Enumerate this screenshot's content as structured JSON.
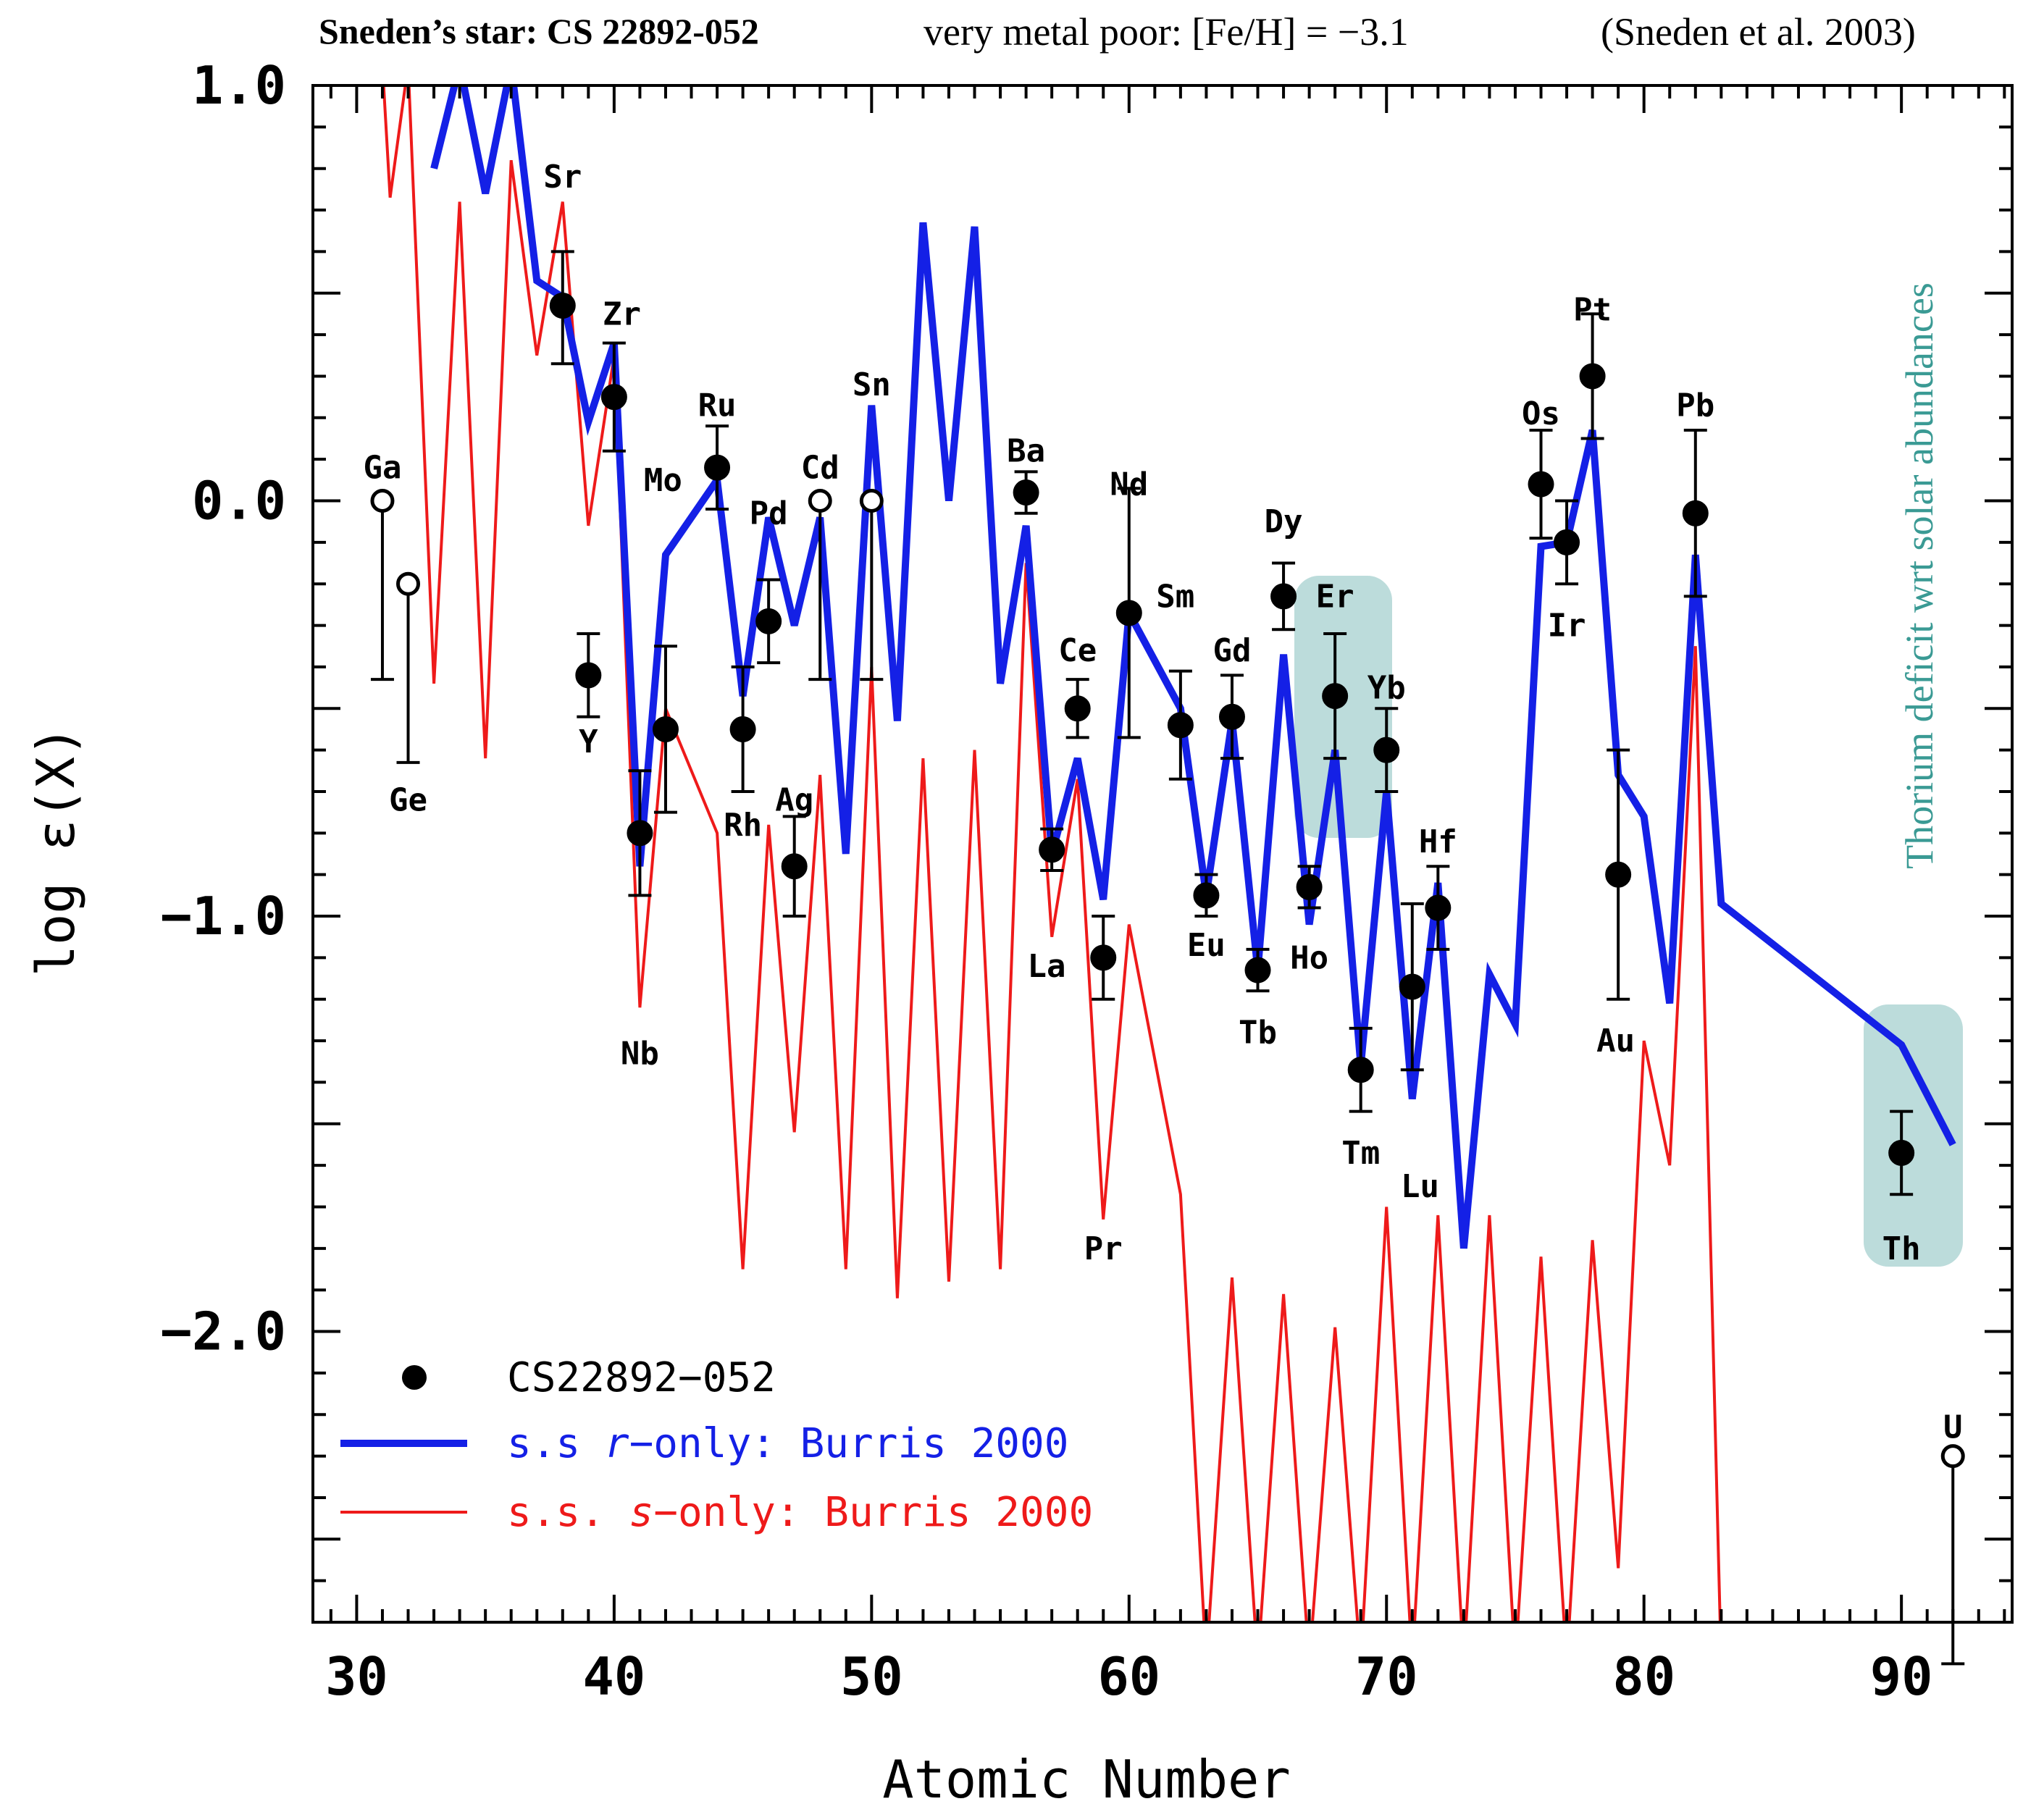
{
  "header": {
    "star": "Sneden’s star: CS 22892-052",
    "metal": "very metal poor: [Fe/H] = −3.1",
    "ref": "(Sneden et al. 2003)"
  },
  "annotation": "Thorium deficit wrt solar abundances",
  "colors": {
    "observed": "#000000",
    "r_only": "#1420e6",
    "s_only": "#ee1a1a",
    "highlight": "#bcdcdb",
    "annotation": "#3a9a94"
  },
  "chart_data": {
    "type": "line",
    "xlabel": "Atomic Number",
    "ylabel": "log ε(X)",
    "xlim": [
      28.3,
      94.3
    ],
    "ylim": [
      -2.7,
      1.0
    ],
    "x_ticks": [
      30,
      40,
      50,
      60,
      70,
      80,
      90
    ],
    "y_ticks": [
      {
        "value": 1.0,
        "label": "1.0"
      },
      {
        "value": 0.0,
        "label": "0.0"
      },
      {
        "value": -1.0,
        "label": "−1.0"
      },
      {
        "value": -2.0,
        "label": "−2.0"
      }
    ],
    "legend_position": "bottom-left",
    "legend": [
      {
        "key": "observed",
        "label": "CS22892−052"
      },
      {
        "key": "r_only",
        "prefix": "s.s ",
        "em": "r",
        "suffix": "−only: Burris 2000"
      },
      {
        "key": "s_only",
        "prefix": "s.s. ",
        "em": "s",
        "suffix": "−only: Burris 2000"
      }
    ],
    "series": [
      {
        "key": "r_only",
        "points": [
          [
            33,
            0.8
          ],
          [
            34,
            1.05
          ],
          [
            35,
            0.74
          ],
          [
            36,
            1.05
          ],
          [
            37,
            0.53
          ],
          [
            38,
            0.49
          ],
          [
            39,
            0.19
          ],
          [
            40,
            0.38
          ],
          [
            41,
            -0.88
          ],
          [
            42,
            -0.13
          ],
          [
            44,
            0.05
          ],
          [
            45,
            -0.47
          ],
          [
            46,
            -0.04
          ],
          [
            47,
            -0.3
          ],
          [
            48,
            -0.04
          ],
          [
            49,
            -0.85
          ],
          [
            50,
            0.23
          ],
          [
            51,
            -0.53
          ],
          [
            52,
            0.67
          ],
          [
            53,
            0.0
          ],
          [
            54,
            0.66
          ],
          [
            55,
            -0.44
          ],
          [
            56,
            -0.06
          ],
          [
            57,
            -0.85
          ],
          [
            58,
            -0.62
          ],
          [
            59,
            -0.96
          ],
          [
            60,
            -0.27
          ],
          [
            62,
            -0.5
          ],
          [
            63,
            -0.95
          ],
          [
            64,
            -0.53
          ],
          [
            65,
            -1.13
          ],
          [
            66,
            -0.37
          ],
          [
            67,
            -1.02
          ],
          [
            68,
            -0.6
          ],
          [
            69,
            -1.36
          ],
          [
            70,
            -0.7
          ],
          [
            71,
            -1.44
          ],
          [
            72,
            -0.92
          ],
          [
            73,
            -1.8
          ],
          [
            74,
            -1.14
          ],
          [
            75,
            -1.26
          ],
          [
            76,
            -0.11
          ],
          [
            77,
            -0.1
          ],
          [
            78,
            0.17
          ],
          [
            79,
            -0.66
          ],
          [
            80,
            -0.76
          ],
          [
            81,
            -1.21
          ],
          [
            82,
            -0.13
          ],
          [
            83,
            -0.97
          ],
          [
            90,
            -1.31
          ],
          [
            92,
            -1.55
          ]
        ]
      },
      {
        "key": "s_only",
        "points": [
          [
            31,
            1.05
          ],
          [
            31.3,
            0.73
          ],
          [
            32,
            1.05
          ],
          [
            33,
            -0.44
          ],
          [
            34,
            0.72
          ],
          [
            35,
            -0.62
          ],
          [
            36,
            0.82
          ],
          [
            37,
            0.35
          ],
          [
            38,
            0.72
          ],
          [
            39,
            -0.06
          ],
          [
            40,
            0.35
          ],
          [
            41,
            -1.22
          ],
          [
            42,
            -0.5
          ],
          [
            44,
            -0.8
          ],
          [
            45,
            -1.85
          ],
          [
            46,
            -0.78
          ],
          [
            47,
            -1.52
          ],
          [
            48,
            -0.66
          ],
          [
            49,
            -1.85
          ],
          [
            50,
            -0.4
          ],
          [
            51,
            -1.92
          ],
          [
            52,
            -0.62
          ],
          [
            53,
            -1.88
          ],
          [
            54,
            -0.6
          ],
          [
            55,
            -1.85
          ],
          [
            56,
            -0.15
          ],
          [
            57,
            -1.05
          ],
          [
            58,
            -0.67
          ],
          [
            59,
            -1.73
          ],
          [
            60,
            -1.02
          ],
          [
            62,
            -1.67
          ],
          [
            63,
            -2.8
          ],
          [
            64,
            -1.87
          ],
          [
            65,
            -2.8
          ],
          [
            66,
            -1.91
          ],
          [
            67,
            -2.8
          ],
          [
            68,
            -1.99
          ],
          [
            69,
            -2.8
          ],
          [
            70,
            -1.7
          ],
          [
            71,
            -2.8
          ],
          [
            72,
            -1.72
          ],
          [
            73,
            -2.8
          ],
          [
            74,
            -1.72
          ],
          [
            75,
            -2.8
          ],
          [
            76,
            -1.82
          ],
          [
            77,
            -2.8
          ],
          [
            78,
            -1.78
          ],
          [
            79,
            -2.57
          ],
          [
            80,
            -1.3
          ],
          [
            81,
            -1.6
          ],
          [
            82,
            -0.35
          ],
          [
            83,
            -2.8
          ]
        ]
      }
    ],
    "observed": [
      {
        "z": 31,
        "y": 0.0,
        "open": true,
        "lo": -0.43,
        "label": "Ga",
        "lx": 31,
        "ly": 0.08
      },
      {
        "z": 32,
        "y": -0.2,
        "open": true,
        "lo": -0.63,
        "label": "Ge",
        "lx": 32,
        "ly": -0.72
      },
      {
        "z": 38,
        "y": 0.47,
        "hi": 0.6,
        "lo": 0.33,
        "label": "Sr",
        "lx": 38,
        "ly": 0.78
      },
      {
        "z": 39,
        "y": -0.42,
        "hi": -0.32,
        "lo": -0.52,
        "label": "Y",
        "lx": 39,
        "ly": -0.58
      },
      {
        "z": 40,
        "y": 0.25,
        "hi": 0.38,
        "lo": 0.12,
        "label": "Zr",
        "lx": 40.3,
        "ly": 0.45
      },
      {
        "z": 41,
        "y": -0.8,
        "hi": -0.65,
        "lo": -0.95,
        "label": "Nb",
        "lx": 41,
        "ly": -1.33
      },
      {
        "z": 42,
        "y": -0.55,
        "hi": -0.35,
        "lo": -0.75,
        "label": "Mo",
        "lx": 41.9,
        "ly": 0.05
      },
      {
        "z": 44,
        "y": 0.08,
        "hi": 0.18,
        "lo": -0.02,
        "label": "Ru",
        "lx": 44,
        "ly": 0.23
      },
      {
        "z": 45,
        "y": -0.55,
        "hi": -0.4,
        "lo": -0.7,
        "label": "Rh",
        "lx": 45,
        "ly": -0.78
      },
      {
        "z": 46,
        "y": -0.29,
        "hi": -0.19,
        "lo": -0.39,
        "label": "Pd",
        "lx": 46,
        "ly": -0.03
      },
      {
        "z": 47,
        "y": -0.88,
        "hi": -0.76,
        "lo": -1.0,
        "label": "Ag",
        "lx": 47,
        "ly": -0.72
      },
      {
        "z": 48,
        "y": 0.0,
        "open": true,
        "lo": -0.43,
        "label": "Cd",
        "lx": 48,
        "ly": 0.08
      },
      {
        "z": 50,
        "y": 0.0,
        "open": true,
        "lo": -0.43,
        "label": "Sn",
        "lx": 50,
        "ly": 0.28
      },
      {
        "z": 56,
        "y": 0.02,
        "hi": 0.07,
        "lo": -0.03,
        "label": "Ba",
        "lx": 56,
        "ly": 0.12
      },
      {
        "z": 57,
        "y": -0.84,
        "hi": -0.79,
        "lo": -0.89,
        "label": "La",
        "lx": 56.8,
        "ly": -1.12
      },
      {
        "z": 58,
        "y": -0.5,
        "hi": -0.43,
        "lo": -0.57,
        "label": "Ce",
        "lx": 58,
        "ly": -0.36
      },
      {
        "z": 59,
        "y": -1.1,
        "hi": -1.0,
        "lo": -1.2,
        "label": "Pr",
        "lx": 59,
        "ly": -1.8
      },
      {
        "z": 60,
        "y": -0.27,
        "hi": 0.03,
        "lo": -0.57,
        "label": "Nd",
        "lx": 60,
        "ly": 0.04
      },
      {
        "z": 62,
        "y": -0.54,
        "hi": -0.41,
        "lo": -0.67,
        "label": "Sm",
        "lx": 61.8,
        "ly": -0.23
      },
      {
        "z": 63,
        "y": -0.95,
        "hi": -0.9,
        "lo": -1.0,
        "label": "Eu",
        "lx": 63,
        "ly": -1.07
      },
      {
        "z": 64,
        "y": -0.52,
        "hi": -0.42,
        "lo": -0.62,
        "label": "Gd",
        "lx": 64,
        "ly": -0.36
      },
      {
        "z": 65,
        "y": -1.13,
        "hi": -1.08,
        "lo": -1.18,
        "label": "Tb",
        "lx": 65,
        "ly": -1.28
      },
      {
        "z": 66,
        "y": -0.23,
        "hi": -0.15,
        "lo": -0.31,
        "label": "Dy",
        "lx": 66,
        "ly": -0.05
      },
      {
        "z": 67,
        "y": -0.93,
        "hi": -0.88,
        "lo": -0.98,
        "label": "Ho",
        "lx": 67,
        "ly": -1.1
      },
      {
        "z": 68,
        "y": -0.47,
        "hi": -0.32,
        "lo": -0.62,
        "label": "Er",
        "lx": 68,
        "ly": -0.23
      },
      {
        "z": 69,
        "y": -1.37,
        "hi": -1.27,
        "lo": -1.47,
        "label": "Tm",
        "lx": 69,
        "ly": -1.57
      },
      {
        "z": 70,
        "y": -0.6,
        "hi": -0.5,
        "lo": -0.7,
        "label": "Yb",
        "lx": 70,
        "ly": -0.45
      },
      {
        "z": 71,
        "y": -1.17,
        "hi": -0.97,
        "lo": -1.37,
        "label": "Lu",
        "lx": 71.3,
        "ly": -1.65
      },
      {
        "z": 72,
        "y": -0.98,
        "hi": -0.88,
        "lo": -1.08,
        "label": "Hf",
        "lx": 72,
        "ly": -0.82
      },
      {
        "z": 76,
        "y": 0.04,
        "hi": 0.17,
        "lo": -0.09,
        "label": "Os",
        "lx": 76,
        "ly": 0.21
      },
      {
        "z": 77,
        "y": -0.1,
        "hi": 0.0,
        "lo": -0.2,
        "label": "Ir",
        "lx": 77,
        "ly": -0.3
      },
      {
        "z": 78,
        "y": 0.3,
        "hi": 0.45,
        "lo": 0.15,
        "label": "Pt",
        "lx": 78,
        "ly": 0.46
      },
      {
        "z": 79,
        "y": -0.9,
        "hi": -0.6,
        "lo": -1.2,
        "label": "Au",
        "lx": 78.9,
        "ly": -1.3
      },
      {
        "z": 82,
        "y": -0.03,
        "hi": 0.17,
        "lo": -0.23,
        "label": "Pb",
        "lx": 82,
        "ly": 0.23
      },
      {
        "z": 90,
        "y": -1.57,
        "hi": -1.47,
        "lo": -1.67,
        "label": "Th",
        "lx": 90,
        "ly": -1.8
      },
      {
        "z": 92,
        "y": -2.3,
        "open": true,
        "lo": -2.8,
        "label": "U",
        "lx": 92,
        "ly": -2.23
      }
    ]
  }
}
